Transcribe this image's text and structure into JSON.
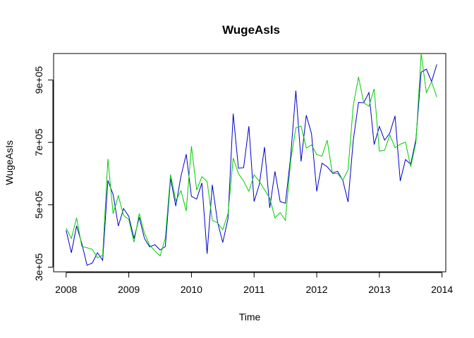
{
  "chart_data": {
    "type": "line",
    "title": "WugeAsIs",
    "xlabel": "Time",
    "ylabel": "WugeAsIs",
    "xlim": [
      2007.8,
      2014.06
    ],
    "ylim": [
      285000,
      985000
    ],
    "xticks": [
      2008,
      2009,
      2010,
      2011,
      2012,
      2013,
      2014
    ],
    "xtick_labels": [
      "2008",
      "2009",
      "2010",
      "2011",
      "2012",
      "2013",
      "2014"
    ],
    "yticks": [
      300000,
      500000,
      700000,
      900000
    ],
    "ytick_labels": [
      "3e+05",
      "5e+05",
      "7e+05",
      "9e+05"
    ],
    "grid": false,
    "legend": "none",
    "series": [
      {
        "color": "#0000CD",
        "x": [
          2008.0,
          2008.0833,
          2008.1667,
          2008.25,
          2008.3333,
          2008.4167,
          2008.5,
          2008.5833,
          2008.6667,
          2008.75,
          2008.8333,
          2008.9167,
          2009.0,
          2009.0833,
          2009.1667,
          2009.25,
          2009.3333,
          2009.4167,
          2009.5,
          2009.5833,
          2009.6667,
          2009.75,
          2009.8333,
          2009.9167,
          2010.0,
          2010.0833,
          2010.1667,
          2010.25,
          2010.3333,
          2010.4167,
          2010.5,
          2010.5833,
          2010.6667,
          2010.75,
          2010.8333,
          2010.9167,
          2011.0,
          2011.0833,
          2011.1667,
          2011.25,
          2011.3333,
          2011.4167,
          2011.5,
          2011.5833,
          2011.6667,
          2011.75,
          2011.8333,
          2011.9167,
          2012.0,
          2012.0833,
          2012.1667,
          2012.25,
          2012.3333,
          2012.4167,
          2012.5,
          2012.5833,
          2012.6667,
          2012.75,
          2012.8333,
          2012.9167,
          2013.0,
          2013.0833,
          2013.1667,
          2013.25,
          2013.3333,
          2013.4167,
          2013.5,
          2013.5833,
          2013.6667,
          2013.75,
          2013.8333,
          2013.9167
        ],
        "values": [
          418000,
          346000,
          432000,
          376000,
          306000,
          313000,
          346000,
          322000,
          578000,
          533000,
          432000,
          488000,
          463000,
          392000,
          460000,
          392000,
          365000,
          372000,
          355000,
          366000,
          585000,
          496000,
          592000,
          662000,
          527000,
          518000,
          570000,
          343000,
          564000,
          445000,
          379000,
          455000,
          792000,
          617000,
          619000,
          752000,
          510000,
          565000,
          685000,
          490000,
          607000,
          510000,
          505000,
          653000,
          866000,
          639000,
          787000,
          728000,
          543000,
          633000,
          622000,
          602000,
          607000,
          578000,
          509000,
          707000,
          828000,
          827000,
          860000,
          693000,
          751000,
          707000,
          730000,
          785000,
          576000,
          645000,
          630000,
          710000,
          925000,
          935000,
          895000,
          950000
        ]
      },
      {
        "color": "#00CD00",
        "x": [
          2008.0,
          2008.0833,
          2008.1667,
          2008.25,
          2008.3333,
          2008.4167,
          2008.5,
          2008.5833,
          2008.6667,
          2008.75,
          2008.8333,
          2008.9167,
          2009.0,
          2009.0833,
          2009.1667,
          2009.25,
          2009.3333,
          2009.4167,
          2009.5,
          2009.5833,
          2009.6667,
          2009.75,
          2009.8333,
          2009.9167,
          2010.0,
          2010.0833,
          2010.1667,
          2010.25,
          2010.3333,
          2010.4167,
          2010.5,
          2010.5833,
          2010.6667,
          2010.75,
          2010.8333,
          2010.9167,
          2011.0,
          2011.0833,
          2011.1667,
          2011.25,
          2011.3333,
          2011.4167,
          2011.5,
          2011.5833,
          2011.6667,
          2011.75,
          2011.8333,
          2011.9167,
          2012.0,
          2012.0833,
          2012.1667,
          2012.25,
          2012.3333,
          2012.4167,
          2012.5,
          2012.5833,
          2012.6667,
          2012.75,
          2012.8333,
          2012.9167,
          2013.0,
          2013.0833,
          2013.1667,
          2013.25,
          2013.3333,
          2013.4167,
          2013.5,
          2013.5833,
          2013.6667,
          2013.75,
          2013.8333,
          2013.9167
        ],
        "values": [
          425000,
          392000,
          458000,
          366000,
          362000,
          357000,
          330000,
          338000,
          647000,
          471000,
          529000,
          466000,
          453000,
          380000,
          472000,
          409000,
          370000,
          352000,
          336000,
          393000,
          597000,
          513000,
          545000,
          480000,
          688000,
          547000,
          590000,
          575000,
          450000,
          442000,
          420000,
          471000,
          650000,
          600000,
          576000,
          543000,
          596000,
          575000,
          548000,
          521000,
          458000,
          475000,
          450000,
          640000,
          747000,
          752000,
          682000,
          692000,
          661000,
          656000,
          707000,
          600000,
          600000,
          579000,
          612000,
          818000,
          910000,
          827000,
          816000,
          872000,
          672000,
          675000,
          724000,
          683000,
          694000,
          701000,
          622000,
          700000,
          985000,
          860000,
          895000,
          845000
        ]
      }
    ]
  }
}
